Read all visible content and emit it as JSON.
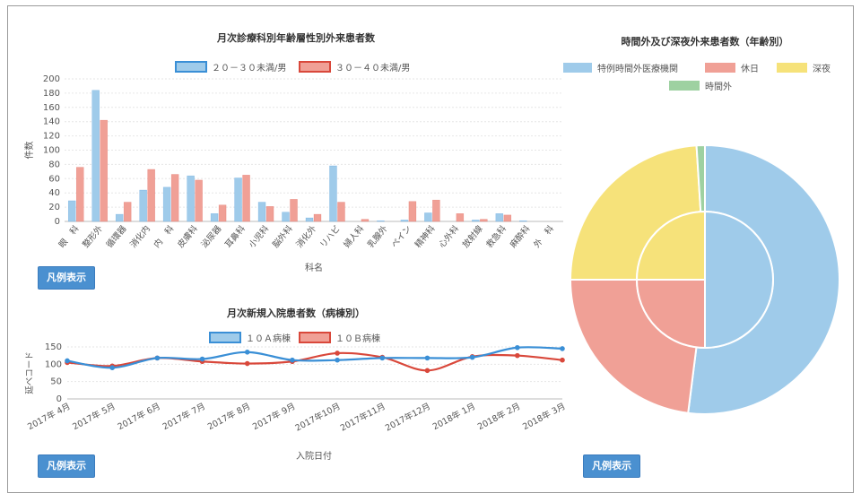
{
  "buttons": {
    "legend_label": "凡例表示"
  },
  "chart_data": [
    {
      "type": "bar",
      "title": "月次診療科別年齢層性別外来患者数",
      "xlabel": "科名",
      "ylabel": "件数",
      "ylim": [
        0,
        200
      ],
      "yticks": [
        0,
        20,
        40,
        60,
        80,
        100,
        120,
        140,
        160,
        180,
        200
      ],
      "legend_position": "top",
      "categories": [
        "眼　科",
        "整形外",
        "循環器",
        "消化内",
        "内　科",
        "皮膚科",
        "泌尿器",
        "耳鼻科",
        "小児科",
        "脳外科",
        "消化外",
        "リハビ",
        "婦人科",
        "乳腺外",
        "ペイン",
        "精神科",
        "心外科",
        "放射線",
        "救急科",
        "麻酔科",
        "外　科"
      ],
      "series": [
        {
          "name": "２０－３０未満/男",
          "color": "#9fcbea",
          "edge": "#3a8fd6",
          "values": [
            29,
            184,
            10,
            44,
            48,
            64,
            11,
            61,
            27,
            13,
            5,
            78,
            0,
            1,
            2,
            12,
            0,
            2,
            11,
            1,
            0
          ]
        },
        {
          "name": "３０－４０未満/男",
          "color": "#f0a096",
          "edge": "#d9483b",
          "values": [
            76,
            142,
            27,
            73,
            66,
            58,
            23,
            65,
            21,
            31,
            10,
            27,
            3,
            0,
            28,
            30,
            11,
            3,
            9,
            0,
            0
          ]
        }
      ]
    },
    {
      "type": "line",
      "title": "月次新規入院患者数（病棟別）",
      "xlabel": "入院日付",
      "ylabel": "延べコード",
      "ylim": [
        0,
        150
      ],
      "yticks": [
        0,
        50,
        100,
        150
      ],
      "legend_position": "top",
      "categories": [
        "2017年 4月",
        "2017年 5月",
        "2017年 6月",
        "2017年 7月",
        "2017年 8月",
        "2017年 9月",
        "2017年10月",
        "2017年11月",
        "2017年12月",
        "2018年 1月",
        "2018年 2月",
        "2018年 3月"
      ],
      "series": [
        {
          "name": "１０Ａ病棟",
          "color": "#3a8fd6",
          "fill": "#9fcbea",
          "values": [
            110,
            90,
            118,
            115,
            135,
            112,
            112,
            118,
            118,
            120,
            148,
            145
          ]
        },
        {
          "name": "１０Ｂ病棟",
          "color": "#d9483b",
          "fill": "#f0a096",
          "values": [
            105,
            95,
            118,
            108,
            102,
            108,
            132,
            120,
            82,
            122,
            125,
            112
          ]
        }
      ]
    },
    {
      "type": "pie",
      "title": "時間外及び深夜外来患者数（年齢別）",
      "legend_position": "top",
      "labels": [
        "特例時間外医療機関",
        "休日",
        "深夜",
        "時間外"
      ],
      "colors": [
        "#9fcbea",
        "#f0a096",
        "#f6e27a",
        "#9ed1a1"
      ],
      "outer_values": [
        52,
        23,
        24,
        1
      ],
      "inner_values": [
        50,
        25,
        25,
        0
      ]
    }
  ]
}
